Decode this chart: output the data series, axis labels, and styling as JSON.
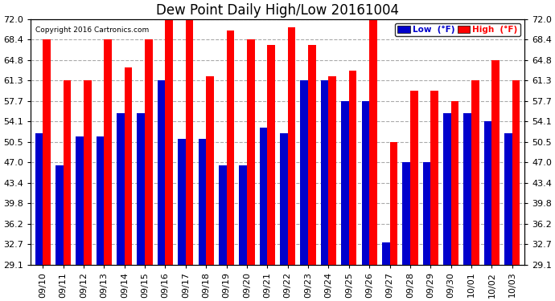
{
  "title": "Dew Point Daily High/Low 20161004",
  "copyright": "Copyright 2016 Cartronics.com",
  "dates": [
    "09/10",
    "09/11",
    "09/12",
    "09/13",
    "09/14",
    "09/15",
    "09/16",
    "09/17",
    "09/18",
    "09/19",
    "09/20",
    "09/21",
    "09/22",
    "09/23",
    "09/24",
    "09/25",
    "09/26",
    "09/27",
    "09/28",
    "09/29",
    "09/30",
    "10/01",
    "10/02",
    "10/03"
  ],
  "high": [
    68.4,
    61.3,
    61.3,
    68.4,
    63.5,
    68.4,
    73.0,
    72.0,
    62.0,
    70.0,
    68.4,
    67.5,
    70.5,
    67.5,
    62.0,
    63.0,
    72.5,
    50.5,
    59.5,
    59.5,
    57.7,
    61.3,
    64.8,
    61.3
  ],
  "low": [
    52.0,
    46.5,
    51.5,
    51.5,
    55.5,
    55.5,
    61.3,
    51.0,
    51.0,
    46.5,
    46.5,
    53.0,
    52.0,
    61.3,
    61.3,
    57.7,
    57.7,
    33.0,
    47.0,
    47.0,
    55.5,
    55.5,
    54.1,
    52.0
  ],
  "ymin": 29.1,
  "ylim": [
    29.1,
    72.0
  ],
  "yticks": [
    29.1,
    32.7,
    36.2,
    39.8,
    43.4,
    47.0,
    50.5,
    54.1,
    57.7,
    61.3,
    64.8,
    68.4,
    72.0
  ],
  "bar_width": 0.38,
  "high_color": "#ff0000",
  "low_color": "#0000cc",
  "bg_color": "#ffffff",
  "grid_color": "#aaaaaa",
  "title_fontsize": 12,
  "tick_fontsize": 8,
  "legend_low_label": "Low  (°F)",
  "legend_high_label": "High  (°F)"
}
